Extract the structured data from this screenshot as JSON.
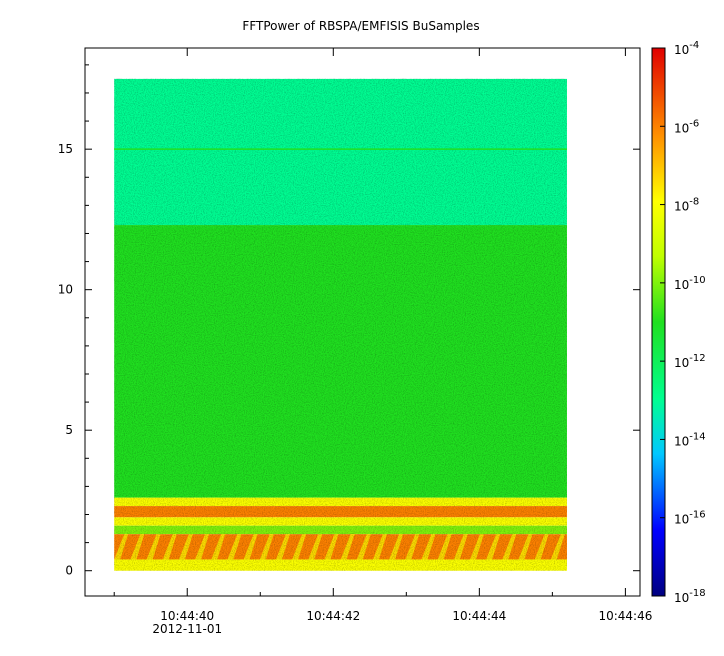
{
  "chart_data": {
    "type": "heatmap",
    "title": "FFTPower of RBSPA/EMFISIS  BuSamples",
    "xlabel": "",
    "ylabel": "",
    "x_range": [
      "10:44:38.6",
      "10:44:46.2"
    ],
    "x_data_extent": [
      "10:44:39.0",
      "10:44:45.2"
    ],
    "x_ticks": [
      {
        "label": "10:44:40",
        "sub": "2012-11-01"
      },
      {
        "label": "10:44:42",
        "sub": ""
      },
      {
        "label": "10:44:44",
        "sub": ""
      },
      {
        "label": "10:44:46",
        "sub": ""
      }
    ],
    "ylim": [
      -0.9,
      18.6
    ],
    "y_data_extent": [
      0,
      17.5
    ],
    "y_ticks": [
      0,
      5,
      10,
      15
    ],
    "colorbar": {
      "scale": "log",
      "range": [
        1e-18,
        0.0001
      ],
      "ticks": [
        {
          "base": "10",
          "exp": "-4"
        },
        {
          "base": "10",
          "exp": "-6"
        },
        {
          "base": "10",
          "exp": "-8"
        },
        {
          "base": "10",
          "exp": "-10"
        },
        {
          "base": "10",
          "exp": "-12"
        },
        {
          "base": "10",
          "exp": "-14"
        },
        {
          "base": "10",
          "exp": "-16"
        },
        {
          "base": "10",
          "exp": "-18"
        }
      ]
    },
    "regions": [
      {
        "y_from": 12.3,
        "y_to": 17.5,
        "power": 1e-13
      },
      {
        "y_from": 2.6,
        "y_to": 12.3,
        "power": 1e-11
      },
      {
        "y_from": 2.3,
        "y_to": 2.6,
        "power": 1e-08
      },
      {
        "y_from": 1.9,
        "y_to": 2.3,
        "power": 1e-06
      },
      {
        "y_from": 1.6,
        "y_to": 1.9,
        "power": 1e-08
      },
      {
        "y_from": 1.3,
        "y_to": 1.6,
        "power": 1e-10
      },
      {
        "y_from": 0.4,
        "y_to": 1.3,
        "power": 1e-06
      },
      {
        "y_from": 0.0,
        "y_to": 0.4,
        "power": 1e-08
      }
    ],
    "line_feature": {
      "y": 15.0,
      "power": 1e-11
    }
  },
  "colors": {
    "frame": "#000000",
    "background": "#ffffff"
  }
}
